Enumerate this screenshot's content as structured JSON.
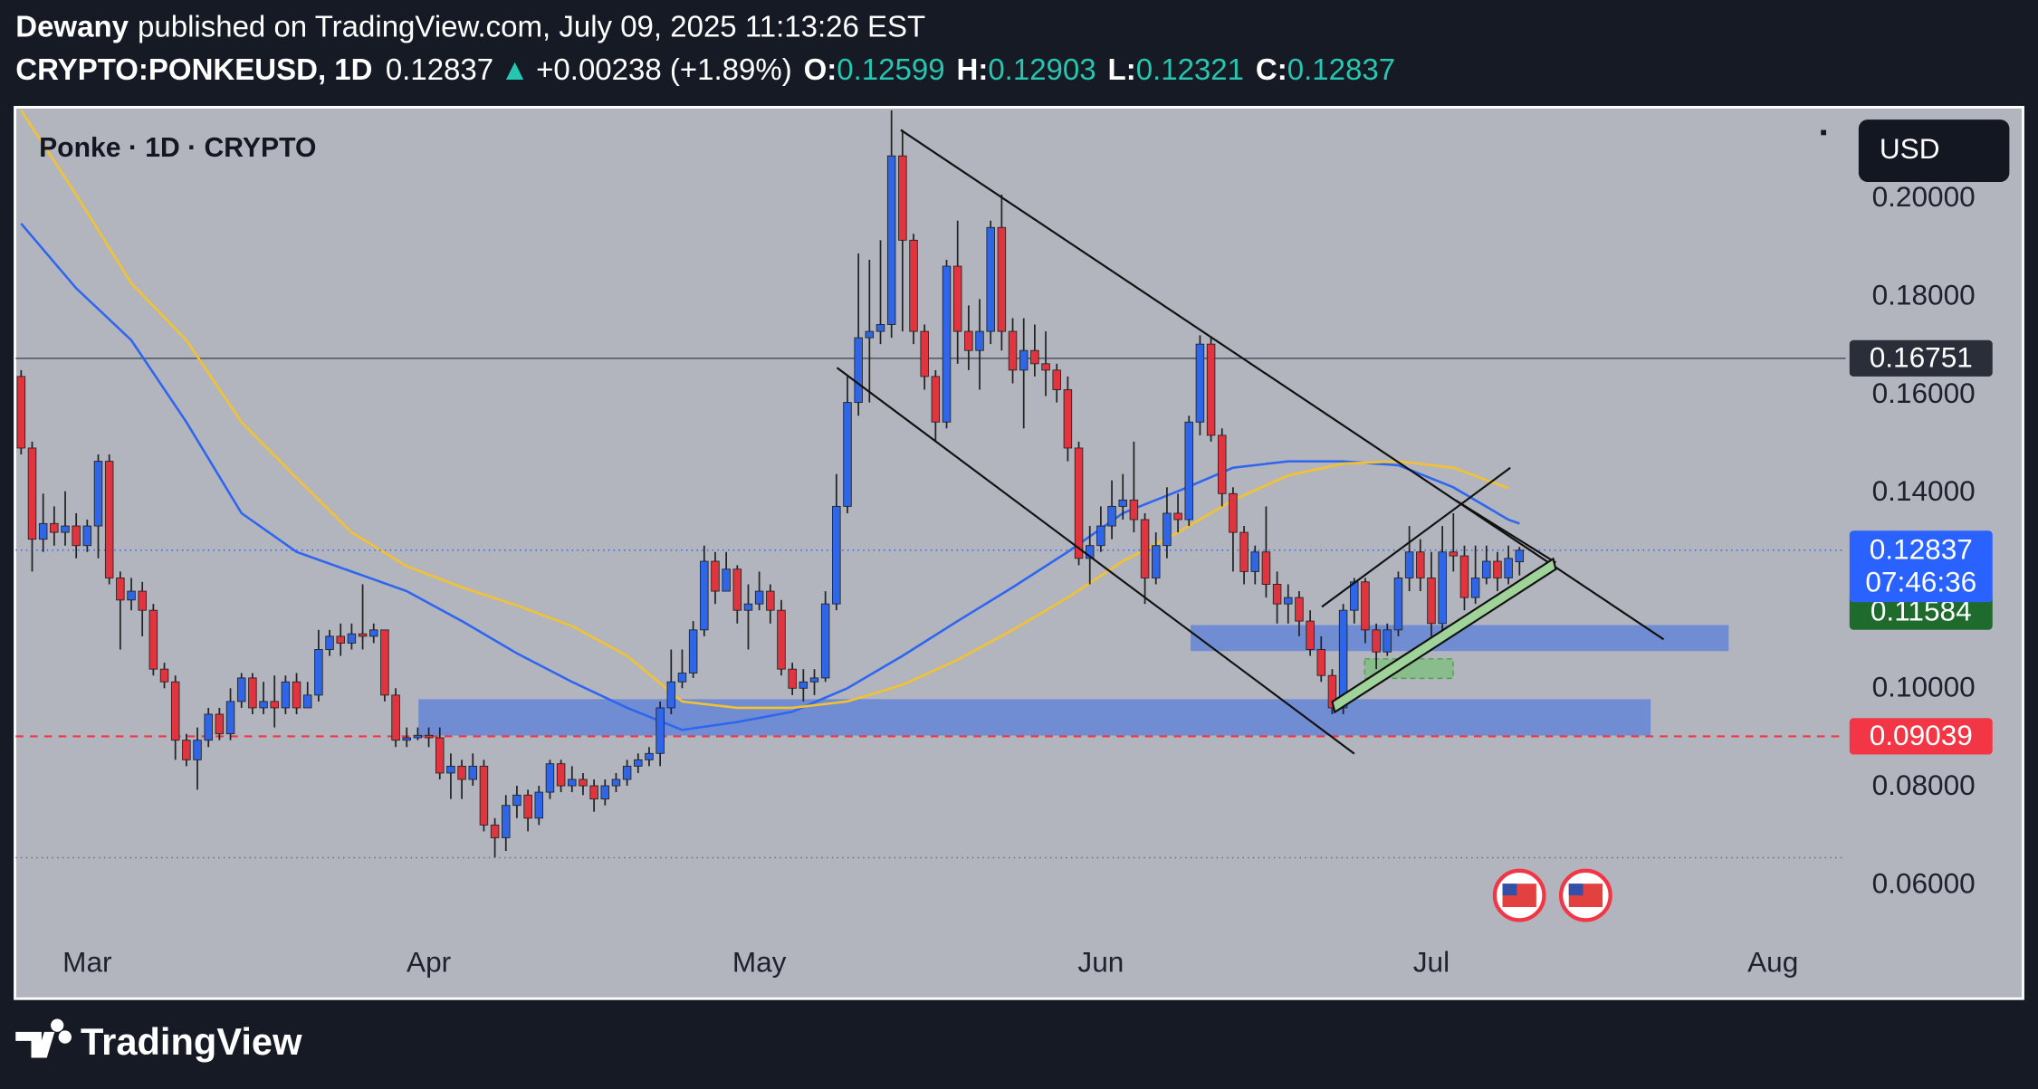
{
  "header": {
    "author": "Dewany",
    "published": "published on TradingView.com, July 09, 2025 11:13:26 EST",
    "symbol": "CRYPTO:PONKEUSD, 1D",
    "arrow": "▲",
    "change": "+0.00238 (+1.89%)",
    "o": "O:",
    "h": "H:",
    "l": "L:",
    "c": "C:"
  },
  "footer": {
    "brand": "TradingView"
  },
  "chart_data": {
    "type": "candlestick",
    "title": "Ponke · 1D · CRYPTO",
    "currency": "USD",
    "countdown": "07:46:36",
    "up_color": "#2f66e8",
    "down_color": "#e0353f",
    "wick_color": "#222222",
    "open": [
      0.1638,
      0.1492,
      0.1306,
      0.1338,
      0.132,
      0.1333,
      0.1293,
      0.1333,
      0.1465,
      0.1227,
      0.1182,
      0.12,
      0.1161,
      0.1041,
      0.1015,
      0.0896,
      0.0856,
      0.0896,
      0.0949,
      0.0909,
      0.0975,
      0.1023,
      0.0962,
      0.0975,
      0.0962,
      0.1015,
      0.0962,
      0.0988,
      0.1081,
      0.1108,
      0.1094,
      0.1113,
      0.1108,
      0.1121,
      0.0988,
      0.0896,
      0.0901,
      0.0906,
      0.0901,
      0.0829,
      0.0843,
      0.0816,
      0.0843,
      0.0723,
      0.0697,
      0.0763,
      0.0784,
      0.0737,
      0.079,
      0.0848,
      0.0803,
      0.0816,
      0.0803,
      0.0776,
      0.0803,
      0.0816,
      0.0843,
      0.0856,
      0.0869,
      0.0962,
      0.1015,
      0.1033,
      0.1121,
      0.1261,
      0.12,
      0.1245,
      0.1161,
      0.1174,
      0.12,
      0.1161,
      0.1041,
      0.1002,
      0.1015,
      0.1023,
      0.1174,
      0.1373,
      0.1585,
      0.1717,
      0.173,
      0.1744,
      0.2088,
      0.1916,
      0.173,
      0.1638,
      0.1545,
      0.1863,
      0.173,
      0.1691,
      0.173,
      0.1942,
      0.173,
      0.1651,
      0.1691,
      0.1664,
      0.1651,
      0.1611,
      0.1492,
      0.1267,
      0.1293,
      0.1333,
      0.1373,
      0.1386,
      0.1346,
      0.1227,
      0.1293,
      0.1359,
      0.1346,
      0.1545,
      0.1704,
      0.1518,
      0.1399,
      0.132,
      0.124,
      0.128,
      0.1214,
      0.1174,
      0.1187,
      0.1139,
      0.1081,
      0.1028,
      0.0962,
      0.1161,
      0.1219,
      0.1121,
      0.1076,
      0.1121,
      0.1227,
      0.128,
      0.1227,
      0.1134,
      0.128,
      0.1272,
      0.1187,
      0.1227,
      0.1261,
      0.1227,
      0.12599
    ],
    "high": [
      0.1651,
      0.1505,
      0.1399,
      0.1373,
      0.1404,
      0.1359,
      0.1346,
      0.1479,
      0.1479,
      0.124,
      0.1227,
      0.1219,
      0.1174,
      0.1054,
      0.1028,
      0.0909,
      0.0922,
      0.0962,
      0.0962,
      0.1002,
      0.1033,
      0.1033,
      0.1015,
      0.1028,
      0.1028,
      0.1033,
      0.1015,
      0.1121,
      0.1121,
      0.1134,
      0.1134,
      0.1214,
      0.1134,
      0.1121,
      0.1002,
      0.0922,
      0.0922,
      0.0922,
      0.0922,
      0.0869,
      0.0856,
      0.0869,
      0.0856,
      0.0737,
      0.0784,
      0.0803,
      0.0795,
      0.0803,
      0.0856,
      0.0856,
      0.0843,
      0.0829,
      0.0816,
      0.0816,
      0.0829,
      0.0856,
      0.0869,
      0.0882,
      0.0975,
      0.1081,
      0.1081,
      0.1139,
      0.1293,
      0.128,
      0.128,
      0.1253,
      0.1214,
      0.124,
      0.1214,
      0.1182,
      0.1054,
      0.1041,
      0.1041,
      0.12,
      0.1439,
      0.1638,
      0.1889,
      0.1876,
      0.1916,
      0.2181,
      0.2141,
      0.1929,
      0.1744,
      0.1651,
      0.1876,
      0.1956,
      0.1783,
      0.1796,
      0.1956,
      0.2009,
      0.1757,
      0.1757,
      0.1744,
      0.173,
      0.1664,
      0.1638,
      0.1505,
      0.1333,
      0.1373,
      0.1426,
      0.1439,
      0.1505,
      0.1359,
      0.132,
      0.1412,
      0.1399,
      0.1558,
      0.1722,
      0.1717,
      0.1532,
      0.1412,
      0.1333,
      0.1293,
      0.1373,
      0.124,
      0.1214,
      0.12,
      0.1161,
      0.1108,
      0.1041,
      0.1174,
      0.1227,
      0.1227,
      0.1134,
      0.1134,
      0.124,
      0.1333,
      0.1306,
      0.128,
      0.1333,
      0.1359,
      0.1293,
      0.1293,
      0.1293,
      0.128,
      0.1293,
      0.12903
    ],
    "low": [
      0.1479,
      0.124,
      0.128,
      0.1293,
      0.1293,
      0.1267,
      0.128,
      0.1267,
      0.1214,
      0.1081,
      0.1161,
      0.1108,
      0.1028,
      0.1002,
      0.0856,
      0.0843,
      0.0795,
      0.0882,
      0.0896,
      0.0896,
      0.0962,
      0.0949,
      0.0949,
      0.0922,
      0.0949,
      0.0949,
      0.0962,
      0.0975,
      0.1068,
      0.1068,
      0.1081,
      0.1081,
      0.1094,
      0.0975,
      0.0882,
      0.0882,
      0.0896,
      0.0882,
      0.0816,
      0.0776,
      0.0776,
      0.0803,
      0.071,
      0.0657,
      0.067,
      0.0737,
      0.071,
      0.0723,
      0.0776,
      0.079,
      0.079,
      0.0784,
      0.075,
      0.0763,
      0.079,
      0.0803,
      0.0829,
      0.0843,
      0.0843,
      0.0949,
      0.1002,
      0.1023,
      0.1108,
      0.1174,
      0.1214,
      0.1134,
      0.1081,
      0.1161,
      0.1134,
      0.1028,
      0.0988,
      0.0975,
      0.0988,
      0.1015,
      0.1161,
      0.1359,
      0.1558,
      0.1585,
      0.1704,
      0.1717,
      0.173,
      0.1704,
      0.1611,
      0.1505,
      0.1532,
      0.1664,
      0.1651,
      0.1611,
      0.1704,
      0.1691,
      0.1624,
      0.1532,
      0.1638,
      0.1598,
      0.1585,
      0.1465,
      0.1253,
      0.1214,
      0.128,
      0.1306,
      0.1346,
      0.132,
      0.1174,
      0.1214,
      0.1267,
      0.132,
      0.1333,
      0.1518,
      0.1505,
      0.1373,
      0.124,
      0.1214,
      0.1214,
      0.1187,
      0.1134,
      0.1134,
      0.1108,
      0.1068,
      0.1015,
      0.0949,
      0.0949,
      0.1134,
      0.1094,
      0.1041,
      0.1068,
      0.1108,
      0.12,
      0.12,
      0.1108,
      0.1121,
      0.124,
      0.1161,
      0.1174,
      0.1214,
      0.12,
      0.1214,
      0.12321
    ],
    "close": [
      0.1492,
      0.1306,
      0.1338,
      0.132,
      0.1333,
      0.1293,
      0.1333,
      0.1465,
      0.1227,
      0.1182,
      0.12,
      0.1161,
      0.1041,
      0.1015,
      0.0896,
      0.0856,
      0.0896,
      0.0949,
      0.0909,
      0.0975,
      0.1023,
      0.0962,
      0.0975,
      0.0962,
      0.1015,
      0.0962,
      0.0988,
      0.1081,
      0.1108,
      0.1094,
      0.1113,
      0.1108,
      0.1121,
      0.0988,
      0.0896,
      0.0901,
      0.0906,
      0.0901,
      0.0829,
      0.0843,
      0.0816,
      0.0843,
      0.0723,
      0.0697,
      0.0763,
      0.0784,
      0.0737,
      0.079,
      0.0848,
      0.0803,
      0.0816,
      0.0803,
      0.0776,
      0.0803,
      0.0816,
      0.0843,
      0.0856,
      0.0869,
      0.0962,
      0.1015,
      0.1033,
      0.1121,
      0.1261,
      0.12,
      0.1245,
      0.1161,
      0.1174,
      0.12,
      0.1161,
      0.1041,
      0.1002,
      0.1015,
      0.1023,
      0.1174,
      0.1373,
      0.1585,
      0.1717,
      0.173,
      0.1744,
      0.2088,
      0.1916,
      0.173,
      0.1638,
      0.1545,
      0.1863,
      0.173,
      0.1691,
      0.173,
      0.1942,
      0.173,
      0.1651,
      0.1691,
      0.1664,
      0.1651,
      0.1611,
      0.1492,
      0.1267,
      0.1293,
      0.1333,
      0.1373,
      0.1386,
      0.1346,
      0.1227,
      0.1293,
      0.1359,
      0.1346,
      0.1545,
      0.1704,
      0.1518,
      0.1399,
      0.132,
      0.124,
      0.128,
      0.1214,
      0.1174,
      0.1187,
      0.1139,
      0.1081,
      0.1028,
      0.0962,
      0.1161,
      0.1219,
      0.1121,
      0.1076,
      0.1121,
      0.1227,
      0.128,
      0.1227,
      0.1134,
      0.128,
      0.1272,
      0.1187,
      0.1227,
      0.1261,
      0.1227,
      0.1267,
      0.12837
    ],
    "overlays": [
      {
        "color": "#2f66f0",
        "x": [
          0,
          5,
          10,
          15,
          20,
          25,
          30,
          35,
          40,
          45,
          50,
          55,
          60,
          65,
          70,
          75,
          80,
          85,
          90,
          95,
          100,
          105,
          110,
          115,
          120,
          125,
          130,
          135,
          136
        ],
        "values": [
          0.195,
          0.1818,
          0.1712,
          0.1545,
          0.1359,
          0.128,
          0.124,
          0.12,
          0.1139,
          0.1073,
          0.1015,
          0.0962,
          0.0917,
          0.0933,
          0.0954,
          0.1002,
          0.1068,
          0.1139,
          0.1208,
          0.128,
          0.1359,
          0.1404,
          0.1452,
          0.1465,
          0.1465,
          0.1457,
          0.1412,
          0.1346,
          0.1338
        ]
      },
      {
        "color": "#f2c230",
        "x": [
          0,
          5,
          10,
          15,
          20,
          25,
          30,
          35,
          40,
          45,
          50,
          55,
          60,
          65,
          70,
          75,
          80,
          85,
          90,
          95,
          100,
          105,
          110,
          115,
          120,
          125,
          130,
          135
        ],
        "values": [
          0.2181,
          0.2009,
          0.1828,
          0.1712,
          0.1545,
          0.1431,
          0.132,
          0.1251,
          0.1208,
          0.1171,
          0.1129,
          0.1068,
          0.0975,
          0.0962,
          0.0962,
          0.0975,
          0.1009,
          0.106,
          0.1121,
          0.1187,
          0.1261,
          0.132,
          0.1386,
          0.1436,
          0.146,
          0.1465,
          0.1452,
          0.141
        ]
      }
    ],
    "levels": [
      {
        "value": 0.16751,
        "color": "#555a66",
        "style": "solid",
        "label_color": "#2a2e39"
      },
      {
        "value": 0.09039,
        "color": "#f23645",
        "style": "dashed",
        "label_color": "#f23645"
      },
      {
        "value": 0.11584,
        "color": "#1f6b2e",
        "style": "none",
        "label_color": "#1f6b2e"
      }
    ],
    "last_color": "#2962ff",
    "xlim": [
      -0.5,
      165.6
    ],
    "xticks": [
      {
        "value": 6,
        "label": "Mar"
      },
      {
        "value": 37,
        "label": "Apr"
      },
      {
        "value": 67,
        "label": "May"
      },
      {
        "value": 98,
        "label": "Jun"
      },
      {
        "value": 128,
        "label": "Jul"
      },
      {
        "value": 159,
        "label": "Aug"
      }
    ],
    "ylim": [
      0.037,
      0.2186
    ],
    "yticks": [
      {
        "value": 0.06,
        "label": "0.06000"
      },
      {
        "value": 0.08,
        "label": "0.08000"
      },
      {
        "value": 0.1,
        "label": "0.10000"
      },
      {
        "value": 0.14,
        "label": "0.14000"
      },
      {
        "value": 0.16,
        "label": "0.16000"
      },
      {
        "value": 0.18,
        "label": "0.18000"
      },
      {
        "value": 0.2,
        "label": "0.20000"
      }
    ],
    "grid": false
  }
}
